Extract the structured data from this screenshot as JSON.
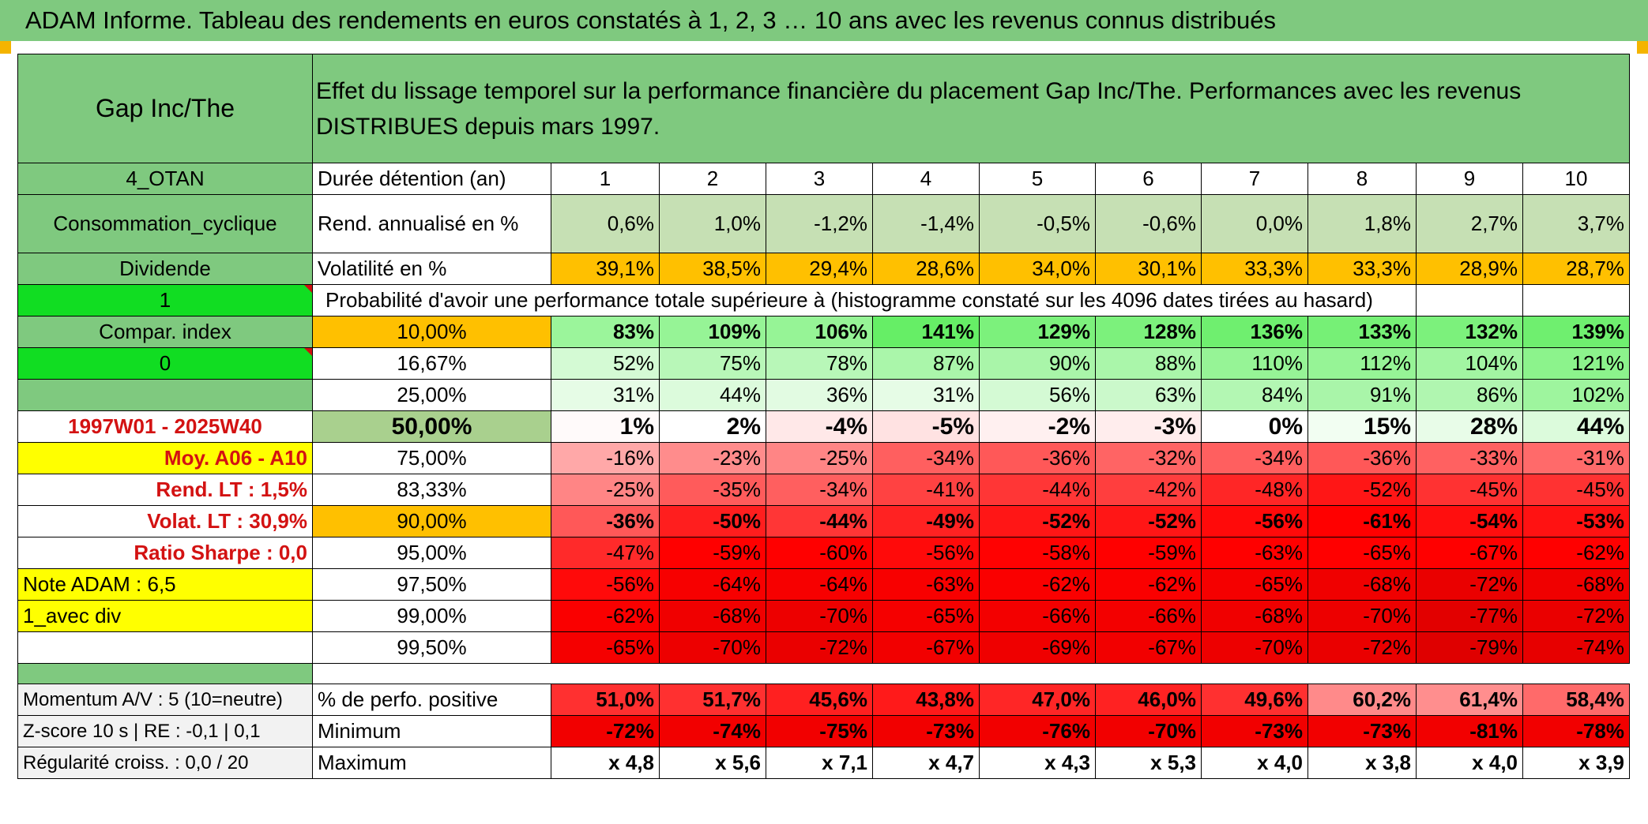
{
  "title": "ADAM Informe. Tableau des rendements en euros constatés à 1, 2, 3 … 10 ans avec les revenus connus distribués",
  "header": {
    "name": "Gap Inc/The",
    "description": "Effet du lissage temporel sur la performance financière du placement Gap Inc/The. Performances avec les revenus DISTRIBUES depuis mars 1997."
  },
  "left": {
    "otan": "4_OTAN",
    "sector": "Consommation_cyclique",
    "dividende": "Dividende",
    "one": "1",
    "compar": "Compar. index",
    "zero": "0",
    "period": "1997W01 - 2025W40",
    "moy": "Moy. A06 - A10",
    "rend_lt": "Rend. LT :   1,5%",
    "volat_lt": "Volat. LT :   30,9%",
    "sharpe": "Ratio Sharpe :    0,0",
    "note": "Note ADAM : 6,5",
    "avec_div": "1_avec div",
    "momentum": "Momentum A/V : 5 (10=neutre)",
    "zscore": "Z-score 10 s | RE : -0,1 | 0,1",
    "regularite": "Régularité croiss. : 0,0 / 20"
  },
  "labels": {
    "duree": "Durée détention (an)",
    "rend": "Rend. annualisé en %",
    "vol": "Volatilité en %",
    "proba": "Probabilité d'avoir une performance totale supérieure à (histogramme constaté sur les 4096 dates tirées au hasard)",
    "perfo_pos": "% de perfo. positive",
    "minimum": "Minimum",
    "maximum": "Maximum"
  },
  "years": [
    "1",
    "2",
    "3",
    "4",
    "5",
    "6",
    "7",
    "8",
    "9",
    "10"
  ],
  "rend": [
    "0,6%",
    "1,0%",
    "-1,2%",
    "-1,4%",
    "-0,5%",
    "-0,6%",
    "0,0%",
    "1,8%",
    "2,7%",
    "3,7%"
  ],
  "vol": [
    "39,1%",
    "38,5%",
    "29,4%",
    "28,6%",
    "34,0%",
    "30,1%",
    "33,3%",
    "33,3%",
    "28,9%",
    "28,7%"
  ],
  "quantiles": [
    {
      "label": "10,00%",
      "values": [
        "83%",
        "109%",
        "106%",
        "141%",
        "129%",
        "128%",
        "136%",
        "133%",
        "132%",
        "139%"
      ],
      "colors": [
        "#9bf59b",
        "#96f496",
        "#96f496",
        "#66ee66",
        "#7cf17c",
        "#7cf17c",
        "#6fef6f",
        "#76f076",
        "#7cf17c",
        "#6fef6f"
      ]
    },
    {
      "label": "16,67%",
      "values": [
        "52%",
        "75%",
        "78%",
        "87%",
        "90%",
        "88%",
        "110%",
        "112%",
        "104%",
        "121%"
      ],
      "colors": [
        "#d4fad4",
        "#b8f7b8",
        "#b8f7b8",
        "#aaf6aa",
        "#a9f5a9",
        "#aaf6aa",
        "#96f496",
        "#96f496",
        "#a2f5a2",
        "#8cf38c"
      ]
    },
    {
      "label": "25,00%",
      "values": [
        "31%",
        "44%",
        "36%",
        "31%",
        "56%",
        "63%",
        "84%",
        "91%",
        "86%",
        "102%"
      ],
      "colors": [
        "#e6fce6",
        "#dcfbdc",
        "#e2fbe2",
        "#e6fce6",
        "#d4fad4",
        "#cbf9cb",
        "#b3f7b3",
        "#a9f5a9",
        "#b0f6b0",
        "#9ef59e"
      ]
    },
    {
      "label": "50,00%",
      "values": [
        "1%",
        "2%",
        "-4%",
        "-5%",
        "-2%",
        "-3%",
        "0%",
        "15%",
        "28%",
        "44%"
      ],
      "colors": [
        "#fffafa",
        "#ffffff",
        "#ffe8e8",
        "#ffe2e2",
        "#fff0f0",
        "#ffeded",
        "#ffffff",
        "#f2fef2",
        "#e8fce8",
        "#dcfbdc"
      ]
    },
    {
      "label": "75,00%",
      "values": [
        "-16%",
        "-23%",
        "-25%",
        "-34%",
        "-36%",
        "-32%",
        "-34%",
        "-36%",
        "-33%",
        "-31%"
      ],
      "colors": [
        "#ffa8a8",
        "#ff8c8c",
        "#ff8585",
        "#ff5f5f",
        "#ff5858",
        "#ff6464",
        "#ff5f5f",
        "#ff5858",
        "#ff6161",
        "#ff6a6a"
      ]
    },
    {
      "label": "83,33%",
      "values": [
        "-25%",
        "-35%",
        "-34%",
        "-41%",
        "-44%",
        "-42%",
        "-48%",
        "-52%",
        "-45%",
        "-45%"
      ],
      "colors": [
        "#ff8585",
        "#ff5b5b",
        "#ff5f5f",
        "#ff4242",
        "#ff3636",
        "#ff3e3e",
        "#ff2626",
        "#ff1616",
        "#ff3232",
        "#ff3232"
      ]
    },
    {
      "label": "90,00%",
      "values": [
        "-36%",
        "-50%",
        "-44%",
        "-49%",
        "-52%",
        "-52%",
        "-56%",
        "-61%",
        "-54%",
        "-53%"
      ],
      "colors": [
        "#ff5858",
        "#ff1e1e",
        "#ff3636",
        "#ff2222",
        "#ff1616",
        "#ff1616",
        "#ff0a0a",
        "#ff0000",
        "#ff0e0e",
        "#ff1212"
      ]
    },
    {
      "label": "95,00%",
      "values": [
        "-47%",
        "-59%",
        "-60%",
        "-56%",
        "-58%",
        "-59%",
        "-63%",
        "-65%",
        "-67%",
        "-62%"
      ],
      "colors": [
        "#ff2a2a",
        "#ff0000",
        "#ff0000",
        "#ff0a0a",
        "#ff0202",
        "#ff0000",
        "#ff0000",
        "#ff0000",
        "#ff0000",
        "#ff0000"
      ]
    },
    {
      "label": "97,50%",
      "values": [
        "-56%",
        "-64%",
        "-64%",
        "-63%",
        "-62%",
        "-62%",
        "-65%",
        "-68%",
        "-72%",
        "-68%"
      ],
      "colors": [
        "#ff0a0a",
        "#f70000",
        "#f70000",
        "#f80000",
        "#fa0000",
        "#fa0000",
        "#f50000",
        "#f00000",
        "#ea0000",
        "#f00000"
      ]
    },
    {
      "label": "99,00%",
      "values": [
        "-62%",
        "-68%",
        "-70%",
        "-65%",
        "-66%",
        "-66%",
        "-68%",
        "-70%",
        "-77%",
        "-72%"
      ],
      "colors": [
        "#fa0000",
        "#f00000",
        "#ed0000",
        "#f50000",
        "#f30000",
        "#f30000",
        "#f00000",
        "#ed0000",
        "#e20000",
        "#ea0000"
      ]
    },
    {
      "label": "99,50%",
      "values": [
        "-65%",
        "-70%",
        "-72%",
        "-67%",
        "-69%",
        "-67%",
        "-70%",
        "-72%",
        "-79%",
        "-74%"
      ],
      "colors": [
        "#f50000",
        "#ed0000",
        "#ea0000",
        "#f20000",
        "#ef0000",
        "#f20000",
        "#ed0000",
        "#ea0000",
        "#df0000",
        "#e70000"
      ]
    }
  ],
  "perfo_pos": [
    "51,0%",
    "51,7%",
    "45,6%",
    "43,8%",
    "47,0%",
    "46,0%",
    "49,6%",
    "60,2%",
    "61,4%",
    "58,4%"
  ],
  "perfo_pos_colors": [
    "#ff3030",
    "#ff3030",
    "#ff2020",
    "#ff1a1a",
    "#ff2626",
    "#ff2222",
    "#ff3030",
    "#ff8a8a",
    "#ff8e8e",
    "#ff6a6a"
  ],
  "minimum": [
    "-72%",
    "-74%",
    "-75%",
    "-73%",
    "-76%",
    "-70%",
    "-73%",
    "-73%",
    "-81%",
    "-78%"
  ],
  "maximum": [
    "x 4,8",
    "x 5,6",
    "x 7,1",
    "x 4,7",
    "x 4,3",
    "x 5,3",
    "x 4,0",
    "x 3,8",
    "x 4,0",
    "x 3,9"
  ],
  "colors": {
    "header_green": "#7fc97f",
    "bright_green": "#11dd22",
    "yellow": "#ffff00",
    "orange": "#ffc000",
    "red_text": "#d31212",
    "rend_bg": "#c6e0b4",
    "median_bg": "#a9d08e"
  }
}
